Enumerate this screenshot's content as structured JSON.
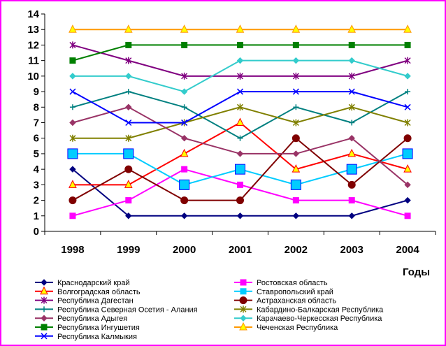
{
  "chart_data": {
    "type": "line",
    "x": [
      "1998",
      "1999",
      "2000",
      "2001",
      "2002",
      "2003",
      "2004"
    ],
    "xlabel": "Годы",
    "ylabel": "",
    "ylim": [
      0,
      14
    ],
    "yticks": [
      0,
      1,
      2,
      3,
      4,
      5,
      6,
      7,
      8,
      9,
      10,
      11,
      12,
      13,
      14
    ],
    "grid": false,
    "legend_position": "bottom",
    "series": [
      {
        "name": "Краснодарский край",
        "color": "#000080",
        "marker": "diamond",
        "values": [
          4,
          1,
          1,
          1,
          1,
          1,
          2
        ]
      },
      {
        "name": "Ростовская область",
        "color": "#ff00ff",
        "marker": "square",
        "values": [
          1,
          2,
          4,
          3,
          2,
          2,
          1
        ]
      },
      {
        "name": "Волгоградская область",
        "color": "#ff0000",
        "marker": "triangle",
        "values": [
          3,
          3,
          5,
          7,
          4,
          5,
          4
        ]
      },
      {
        "name": "Ставропольский край",
        "color": "#00ccff",
        "marker": "bigsquare",
        "values": [
          5,
          5,
          3,
          4,
          3,
          4,
          5
        ]
      },
      {
        "name": "Республика Дагестан",
        "color": "#800080",
        "marker": "star",
        "values": [
          12,
          11,
          10,
          10,
          10,
          10,
          11
        ]
      },
      {
        "name": "Астраханская область",
        "color": "#800000",
        "marker": "circle",
        "values": [
          2,
          4,
          2,
          2,
          6,
          3,
          6
        ]
      },
      {
        "name": "Республика Северная Осетия - Алания",
        "color": "#008080",
        "marker": "plus",
        "values": [
          8,
          9,
          8,
          6,
          8,
          7,
          9
        ]
      },
      {
        "name": "Кабардино-Балкарская Республика",
        "color": "#808000",
        "marker": "star",
        "values": [
          6,
          6,
          7,
          8,
          7,
          8,
          7
        ]
      },
      {
        "name": "Республика Адыгея",
        "color": "#993366",
        "marker": "diamond",
        "values": [
          7,
          8,
          6,
          5,
          5,
          6,
          3
        ]
      },
      {
        "name": "Карачаево-Черкесская Республика",
        "color": "#33cccc",
        "marker": "diamond",
        "values": [
          10,
          10,
          9,
          11,
          11,
          11,
          10
        ]
      },
      {
        "name": "Республика Ингушетия",
        "color": "#008000",
        "marker": "square",
        "values": [
          11,
          12,
          12,
          12,
          12,
          12,
          12
        ]
      },
      {
        "name": "Чеченская Республика",
        "color": "#ff9900",
        "marker": "triangle",
        "values": [
          13,
          13,
          13,
          13,
          13,
          13,
          13
        ]
      },
      {
        "name": "Республика Калмыкия",
        "color": "#0000ff",
        "marker": "cross",
        "values": [
          9,
          7,
          7,
          9,
          9,
          9,
          8
        ]
      }
    ]
  }
}
